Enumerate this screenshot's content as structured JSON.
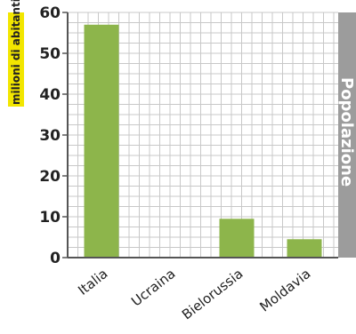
{
  "chart_data": {
    "type": "bar",
    "categories": [
      "Italia",
      "Ucraina",
      "Bielorussia",
      "Moldavia"
    ],
    "values": [
      57,
      0,
      9.5,
      4.5
    ],
    "ylabel": "milioni di abitanti",
    "yticks": [
      0,
      10,
      20,
      30,
      40,
      50,
      60
    ],
    "ylim": [
      0,
      60
    ],
    "side_label": "Popolazione",
    "grid": true,
    "colors": {
      "bar": "#8db54b",
      "grid": "#c8c8c8",
      "axis": "#555555",
      "side_band": "#9c9c9c",
      "ylabel_box": "#f2e600"
    }
  }
}
